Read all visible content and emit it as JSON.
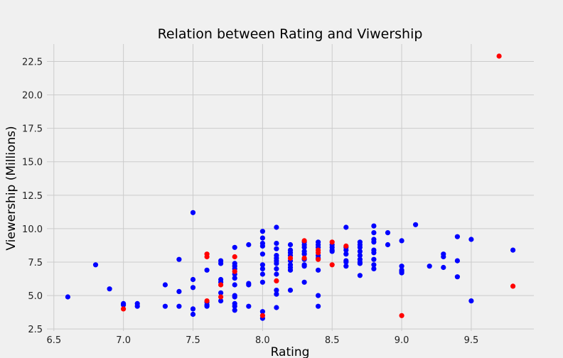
{
  "chart_data": {
    "type": "scatter",
    "title": "Relation between Rating and Viwership",
    "xlabel": "Rating",
    "ylabel": "Viewership (Millions)",
    "xlim": [
      6.45,
      9.95
    ],
    "ylim": [
      2.35,
      23.8
    ],
    "grid": true,
    "x_ticks": [
      6.5,
      7.0,
      7.5,
      8.0,
      8.5,
      9.0,
      9.5
    ],
    "x_tick_labels": [
      "6.5",
      "7.0",
      "7.5",
      "8.0",
      "8.5",
      "9.0",
      "9.5"
    ],
    "y_ticks": [
      2.5,
      5.0,
      7.5,
      10.0,
      12.5,
      15.0,
      17.5,
      20.0,
      22.5
    ],
    "y_tick_labels": [
      "2.5",
      "5.0",
      "7.5",
      "10.0",
      "12.5",
      "15.0",
      "17.5",
      "20.0",
      "22.5"
    ],
    "colors": {
      "blue": "#0000ff",
      "red": "#ff0000"
    },
    "series": [
      {
        "color": "#0000ff",
        "points": [
          [
            6.6,
            4.9
          ],
          [
            6.8,
            7.3
          ],
          [
            6.9,
            5.5
          ],
          [
            7.0,
            4.4
          ],
          [
            7.0,
            4.3
          ],
          [
            7.1,
            4.4
          ],
          [
            7.1,
            4.2
          ],
          [
            7.3,
            5.8
          ],
          [
            7.3,
            4.2
          ],
          [
            7.4,
            7.7
          ],
          [
            7.4,
            5.3
          ],
          [
            7.4,
            4.2
          ],
          [
            7.5,
            11.2
          ],
          [
            7.5,
            6.2
          ],
          [
            7.5,
            5.6
          ],
          [
            7.5,
            4.0
          ],
          [
            7.5,
            3.6
          ],
          [
            7.6,
            6.9
          ],
          [
            7.6,
            4.5
          ],
          [
            7.6,
            4.3
          ],
          [
            7.6,
            4.2
          ],
          [
            7.7,
            7.6
          ],
          [
            7.7,
            7.4
          ],
          [
            7.7,
            6.2
          ],
          [
            7.7,
            6.0
          ],
          [
            7.7,
            5.2
          ],
          [
            7.7,
            4.6
          ],
          [
            7.8,
            8.6
          ],
          [
            7.8,
            7.4
          ],
          [
            7.8,
            7.2
          ],
          [
            7.8,
            7.0
          ],
          [
            7.8,
            6.6
          ],
          [
            7.8,
            6.3
          ],
          [
            7.8,
            5.8
          ],
          [
            7.8,
            5.0
          ],
          [
            7.8,
            4.9
          ],
          [
            7.8,
            4.4
          ],
          [
            7.8,
            4.2
          ],
          [
            7.8,
            3.9
          ],
          [
            7.9,
            8.8
          ],
          [
            7.9,
            5.9
          ],
          [
            7.9,
            5.8
          ],
          [
            7.9,
            4.2
          ],
          [
            8.0,
            9.8
          ],
          [
            8.0,
            9.3
          ],
          [
            8.0,
            8.9
          ],
          [
            8.0,
            8.7
          ],
          [
            8.0,
            8.1
          ],
          [
            8.0,
            7.3
          ],
          [
            8.0,
            7.0
          ],
          [
            8.0,
            6.6
          ],
          [
            8.0,
            6.0
          ],
          [
            8.0,
            3.8
          ],
          [
            8.0,
            3.3
          ],
          [
            8.1,
            10.1
          ],
          [
            8.1,
            8.9
          ],
          [
            8.1,
            8.5
          ],
          [
            8.1,
            8.0
          ],
          [
            8.1,
            7.8
          ],
          [
            8.1,
            7.6
          ],
          [
            8.1,
            7.4
          ],
          [
            8.1,
            7.0
          ],
          [
            8.1,
            6.6
          ],
          [
            8.1,
            5.4
          ],
          [
            8.1,
            5.1
          ],
          [
            8.1,
            4.1
          ],
          [
            8.2,
            8.8
          ],
          [
            8.2,
            8.4
          ],
          [
            8.2,
            8.2
          ],
          [
            8.2,
            8.0
          ],
          [
            8.2,
            7.6
          ],
          [
            8.2,
            7.3
          ],
          [
            8.2,
            7.1
          ],
          [
            8.2,
            6.9
          ],
          [
            8.2,
            5.4
          ],
          [
            8.3,
            9.0
          ],
          [
            8.3,
            8.8
          ],
          [
            8.3,
            8.6
          ],
          [
            8.3,
            8.3
          ],
          [
            8.3,
            8.1
          ],
          [
            8.3,
            7.7
          ],
          [
            8.3,
            7.3
          ],
          [
            8.3,
            7.2
          ],
          [
            8.3,
            6.0
          ],
          [
            8.4,
            9.0
          ],
          [
            8.4,
            8.8
          ],
          [
            8.4,
            8.6
          ],
          [
            8.4,
            8.0
          ],
          [
            8.4,
            7.8
          ],
          [
            8.4,
            6.9
          ],
          [
            8.4,
            5.0
          ],
          [
            8.4,
            4.2
          ],
          [
            8.5,
            8.8
          ],
          [
            8.5,
            8.6
          ],
          [
            8.5,
            8.4
          ],
          [
            8.5,
            8.3
          ],
          [
            8.6,
            10.1
          ],
          [
            8.6,
            8.6
          ],
          [
            8.6,
            8.4
          ],
          [
            8.6,
            8.1
          ],
          [
            8.6,
            7.6
          ],
          [
            8.6,
            7.5
          ],
          [
            8.6,
            7.2
          ],
          [
            8.7,
            9.0
          ],
          [
            8.7,
            8.8
          ],
          [
            8.7,
            8.6
          ],
          [
            8.7,
            8.3
          ],
          [
            8.7,
            8.0
          ],
          [
            8.7,
            7.7
          ],
          [
            8.7,
            7.5
          ],
          [
            8.7,
            7.4
          ],
          [
            8.7,
            6.5
          ],
          [
            8.8,
            10.2
          ],
          [
            8.8,
            9.7
          ],
          [
            8.8,
            9.2
          ],
          [
            8.8,
            9.0
          ],
          [
            8.8,
            8.4
          ],
          [
            8.8,
            8.2
          ],
          [
            8.8,
            7.7
          ],
          [
            8.8,
            7.3
          ],
          [
            8.8,
            7.0
          ],
          [
            8.9,
            9.7
          ],
          [
            8.9,
            8.8
          ],
          [
            9.0,
            9.1
          ],
          [
            9.0,
            7.2
          ],
          [
            9.0,
            6.9
          ],
          [
            9.0,
            6.8
          ],
          [
            9.0,
            6.7
          ],
          [
            9.1,
            10.3
          ],
          [
            9.2,
            7.2
          ],
          [
            9.3,
            8.1
          ],
          [
            9.3,
            7.9
          ],
          [
            9.3,
            7.1
          ],
          [
            9.4,
            9.4
          ],
          [
            9.4,
            7.6
          ],
          [
            9.4,
            6.4
          ],
          [
            9.5,
            9.2
          ],
          [
            9.5,
            4.6
          ],
          [
            9.8,
            8.4
          ]
        ]
      },
      {
        "color": "#ff0000",
        "points": [
          [
            7.0,
            4.0
          ],
          [
            7.6,
            8.1
          ],
          [
            7.6,
            7.9
          ],
          [
            7.6,
            4.6
          ],
          [
            7.7,
            5.8
          ],
          [
            7.7,
            4.9
          ],
          [
            7.8,
            7.9
          ],
          [
            7.8,
            6.8
          ],
          [
            8.0,
            3.5
          ],
          [
            8.1,
            6.1
          ],
          [
            8.2,
            7.8
          ],
          [
            8.3,
            9.1
          ],
          [
            8.3,
            7.8
          ],
          [
            8.4,
            8.4
          ],
          [
            8.4,
            8.2
          ],
          [
            8.4,
            7.7
          ],
          [
            8.5,
            9.0
          ],
          [
            8.5,
            7.3
          ],
          [
            8.6,
            8.7
          ],
          [
            9.0,
            3.5
          ],
          [
            9.7,
            22.9
          ],
          [
            9.8,
            5.7
          ]
        ]
      }
    ]
  }
}
